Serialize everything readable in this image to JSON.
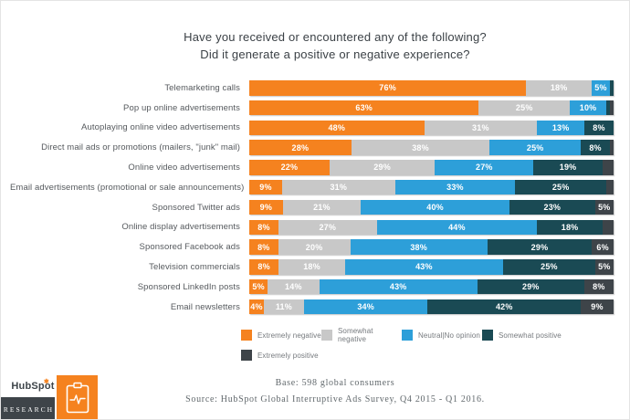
{
  "title": {
    "line1": "Have you received or encountered any of the following?",
    "line2": "Did it generate a positive or negative experience?"
  },
  "chart_data": {
    "type": "bar",
    "stacked": true,
    "orientation": "horizontal",
    "unit": "%",
    "title": "Have you received or encountered any of the following? Did it generate a positive or negative experience?",
    "legend_position": "bottom",
    "series_names": [
      "Extremely negative",
      "Somewhat negative",
      "Neutral|No opinion",
      "Somewhat positive",
      "Extremely positive"
    ],
    "colors": [
      "#F5821F",
      "#C8C8C8",
      "#2D9FD9",
      "#1A4A54",
      "#3E4449"
    ],
    "rows": [
      {
        "category": "Telemarketing calls",
        "values": [
          76,
          18,
          5,
          1,
          0
        ],
        "labels": [
          "76%",
          "18%",
          "5%",
          "",
          ""
        ]
      },
      {
        "category": "Pop up online advertisements",
        "values": [
          63,
          25,
          10,
          1,
          1
        ],
        "labels": [
          "63%",
          "25%",
          "10%",
          "",
          ""
        ]
      },
      {
        "category": "Autoplaying online video advertisements",
        "values": [
          48,
          31,
          13,
          8,
          0
        ],
        "labels": [
          "48%",
          "31%",
          "13%",
          "8%",
          ""
        ]
      },
      {
        "category": "Direct mail ads or promotions (mailers, \"junk\" mail)",
        "values": [
          28,
          38,
          25,
          8,
          1
        ],
        "labels": [
          "28%",
          "38%",
          "25%",
          "8%",
          ""
        ]
      },
      {
        "category": "Online video advertisements",
        "values": [
          22,
          29,
          27,
          19,
          3
        ],
        "labels": [
          "22%",
          "29%",
          "27%",
          "19%",
          ""
        ]
      },
      {
        "category": "Email advertisements (promotional or sale announcements)",
        "values": [
          9,
          31,
          33,
          25,
          2
        ],
        "labels": [
          "9%",
          "31%",
          "33%",
          "25%",
          ""
        ]
      },
      {
        "category": "Sponsored Twitter ads",
        "values": [
          9,
          21,
          40,
          23,
          5
        ],
        "labels": [
          "9%",
          "21%",
          "40%",
          "23%",
          "5%"
        ]
      },
      {
        "category": "Online display advertisements",
        "values": [
          8,
          27,
          44,
          18,
          3
        ],
        "labels": [
          "8%",
          "27%",
          "44%",
          "18%",
          ""
        ]
      },
      {
        "category": "Sponsored Facebook ads",
        "values": [
          8,
          20,
          38,
          29,
          6
        ],
        "labels": [
          "8%",
          "20%",
          "38%",
          "29%",
          "6%"
        ]
      },
      {
        "category": "Television commercials",
        "values": [
          8,
          18,
          43,
          25,
          5
        ],
        "labels": [
          "8%",
          "18%",
          "43%",
          "25%",
          "5%"
        ]
      },
      {
        "category": "Sponsored LinkedIn posts",
        "values": [
          5,
          14,
          43,
          29,
          8
        ],
        "labels": [
          "5%",
          "14%",
          "43%",
          "29%",
          "8%"
        ]
      },
      {
        "category": "Email newsletters",
        "values": [
          4,
          11,
          34,
          42,
          9
        ],
        "labels": [
          "4%",
          "11%",
          "34%",
          "42%",
          "9%"
        ]
      }
    ]
  },
  "footer": {
    "base": "Base: 598 global consumers",
    "source": "Source: HubSpot Global Interruptive Ads Survey, Q4 2015 - Q1 2016."
  },
  "logo": {
    "brand": "HubSpot",
    "research": "RESEARCH",
    "sprocket_glyph": "✱"
  }
}
